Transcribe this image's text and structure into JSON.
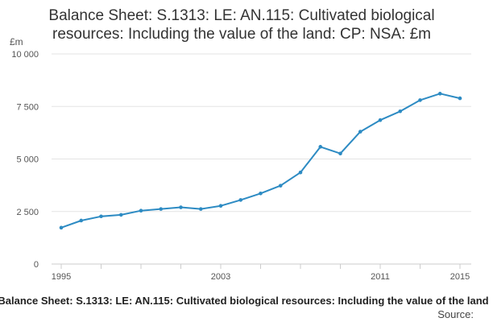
{
  "chart_data": {
    "type": "line",
    "title_lines": [
      "Balance Sheet: S.1313: LE: AN.115: Cultivated biological",
      "resources: Including the value of the land: CP: NSA: £m"
    ],
    "unit_label": "£m",
    "y_tick_labels": [
      "0",
      "2 500",
      "5 000",
      "7 500",
      "10 000"
    ],
    "y_ticks": [
      0,
      2500,
      5000,
      7500,
      10000
    ],
    "ylim": [
      0,
      10000
    ],
    "x_tick_labels": [
      "1995",
      "2003",
      "2011",
      "2015"
    ],
    "x_ticks": [
      1995,
      2003,
      2011,
      2015
    ],
    "xlim": [
      1995,
      2015
    ],
    "grid": true,
    "series": [
      {
        "name": "Balance Sheet: S.1313: LE: AN.115: Cultivated biological resources: Including the value of the land",
        "color": "#2d8bc3",
        "x": [
          1995,
          1996,
          1997,
          1998,
          1999,
          2000,
          2001,
          2002,
          2003,
          2004,
          2005,
          2006,
          2007,
          2008,
          2009,
          2010,
          2011,
          2012,
          2013,
          2014,
          2015
        ],
        "values": [
          1730,
          2070,
          2270,
          2340,
          2540,
          2620,
          2700,
          2620,
          2770,
          3050,
          3360,
          3730,
          4360,
          5580,
          5260,
          6300,
          6850,
          7270,
          7800,
          8110,
          7890
        ]
      }
    ],
    "source_label": "Source:"
  }
}
